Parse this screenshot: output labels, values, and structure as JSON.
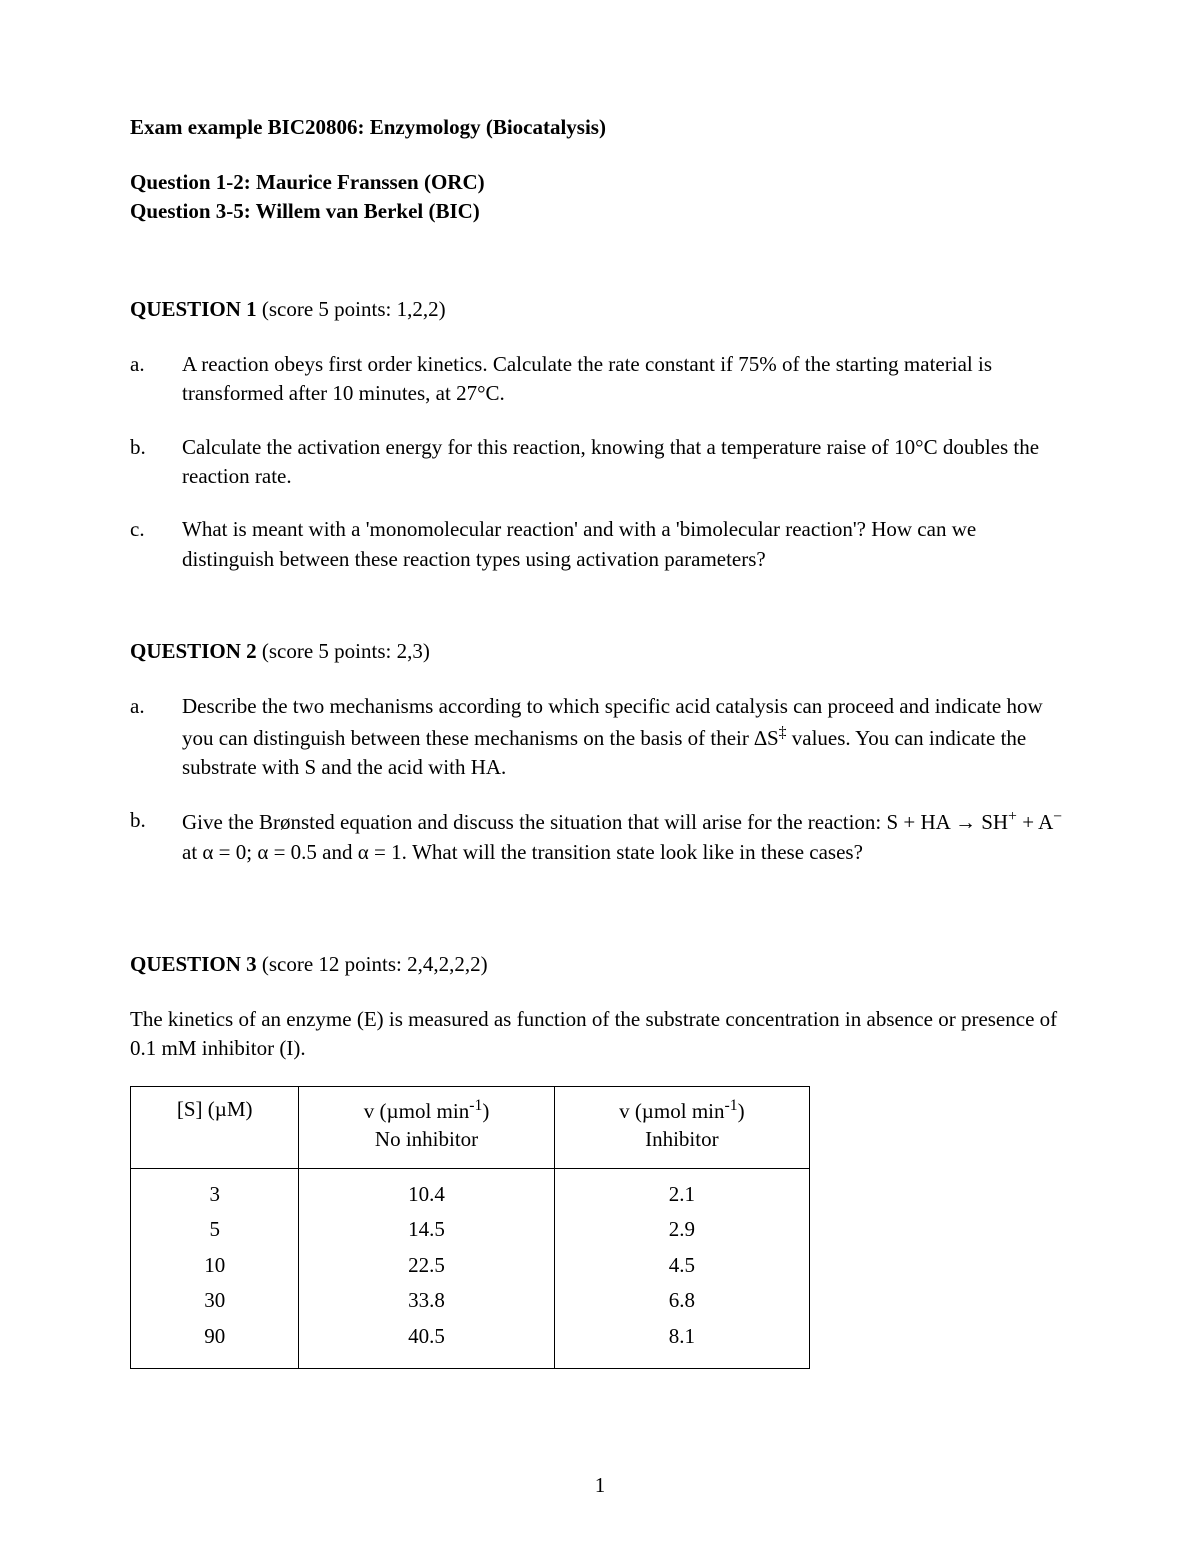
{
  "title": "Exam example BIC20806: Enzymology (Biocatalysis)",
  "authors": {
    "line1": "Question 1-2: Maurice Franssen (ORC)",
    "line2": "Question 3-5: Willem van Berkel (BIC)"
  },
  "q1": {
    "label": "QUESTION 1",
    "score": " (score 5 points: 1,2,2)",
    "a": "A reaction obeys first order kinetics. Calculate the rate constant if 75% of the starting material is transformed after 10 minutes, at 27°C.",
    "b": "Calculate the activation energy for this reaction, knowing that a temperature raise of 10°C doubles the reaction rate.",
    "c": "What is meant with a 'monomolecular reaction' and with a 'bimolecular reaction'? How can we distinguish between these reaction types using activation parameters?"
  },
  "q2": {
    "label": "QUESTION 2",
    "score": " (score 5 points: 2,3)",
    "a_html": "Describe the two mechanisms according to which specific acid catalysis can proceed and indicate how you can distinguish between these mechanisms on the basis of their ∆S<sup>‡</sup> values. You can indicate the substrate with S and the acid with HA.",
    "b_html": "Give the Brønsted equation and discuss the situation that will arise for the reaction: S + HA → SH<sup>+</sup> + A<sup>−</sup> at α = 0; α = 0.5 and α = 1. What will the transition state look like in these cases?"
  },
  "q3": {
    "label": "QUESTION 3",
    "score": " (score 12 points: 2,4,2,2,2)",
    "intro": "The kinetics of an enzyme (E) is measured as function of the substrate concentration in absence or presence of 0.1 mM inhibitor (I).",
    "table": {
      "col1_html": "[S] (µM)",
      "col2_html": "v (µmol min<sup>-1</sup>)<br>No inhibitor",
      "col3_html": "v (µmol min<sup>-1</sup>)<br>Inhibitor",
      "rows": [
        {
          "s": "3",
          "v1": "10.4",
          "v2": "2.1"
        },
        {
          "s": "5",
          "v1": "14.5",
          "v2": "2.9"
        },
        {
          "s": "10",
          "v1": "22.5",
          "v2": "4.5"
        },
        {
          "s": "30",
          "v1": "33.8",
          "v2": "6.8"
        },
        {
          "s": "90",
          "v1": "40.5",
          "v2": "8.1"
        }
      ]
    }
  },
  "page_number": "1"
}
